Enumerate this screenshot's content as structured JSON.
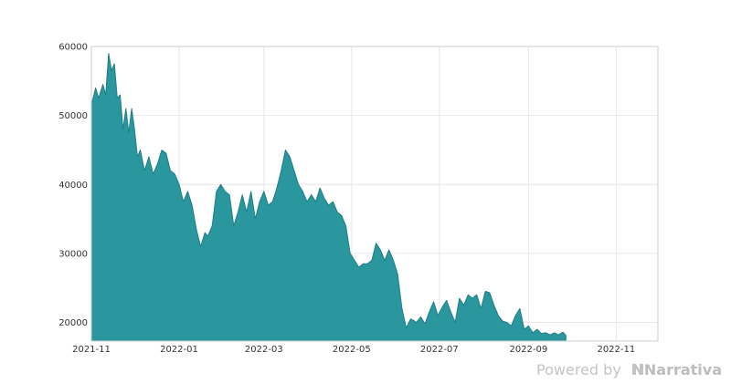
{
  "chart_data": {
    "type": "area",
    "title": "",
    "xlabel": "",
    "ylabel": "",
    "xlim": [
      "2021-11-01",
      "2022-11-30"
    ],
    "ylim": [
      17300,
      60000
    ],
    "x_ticks": [
      "2021-11",
      "2022-01",
      "2022-03",
      "2022-05",
      "2022-07",
      "2022-09",
      "2022-11"
    ],
    "y_ticks": [
      20000,
      30000,
      40000,
      50000,
      60000
    ],
    "grid": true,
    "colors": {
      "fill": "#2a969d",
      "stroke": "#1f7f86",
      "grid": "#e6e6e6",
      "frame": "#cccccc"
    },
    "series": [
      {
        "x": [
          "2021-11-01",
          "2021-11-04",
          "2021-11-06",
          "2021-11-09",
          "2021-11-11",
          "2021-11-13",
          "2021-11-15",
          "2021-11-17",
          "2021-11-19",
          "2021-11-21",
          "2021-11-23",
          "2021-11-25",
          "2021-11-27",
          "2021-11-29",
          "2021-12-01",
          "2021-12-03",
          "2021-12-05",
          "2021-12-08",
          "2021-12-11",
          "2021-12-14",
          "2021-12-17",
          "2021-12-20",
          "2021-12-23",
          "2021-12-26",
          "2021-12-29",
          "2022-01-01",
          "2022-01-04",
          "2022-01-07",
          "2022-01-10",
          "2022-01-13",
          "2022-01-16",
          "2022-01-19",
          "2022-01-21",
          "2022-01-24",
          "2022-01-27",
          "2022-01-30",
          "2022-02-02",
          "2022-02-05",
          "2022-02-08",
          "2022-02-11",
          "2022-02-14",
          "2022-02-17",
          "2022-02-20",
          "2022-02-23",
          "2022-02-26",
          "2022-03-01",
          "2022-03-04",
          "2022-03-07",
          "2022-03-10",
          "2022-03-13",
          "2022-03-16",
          "2022-03-19",
          "2022-03-22",
          "2022-03-25",
          "2022-03-28",
          "2022-03-31",
          "2022-04-03",
          "2022-04-06",
          "2022-04-09",
          "2022-04-12",
          "2022-04-15",
          "2022-04-18",
          "2022-04-21",
          "2022-04-24",
          "2022-04-27",
          "2022-04-30",
          "2022-05-03",
          "2022-05-06",
          "2022-05-09",
          "2022-05-12",
          "2022-05-15",
          "2022-05-18",
          "2022-05-21",
          "2022-05-24",
          "2022-05-27",
          "2022-05-30",
          "2022-06-02",
          "2022-06-05",
          "2022-06-08",
          "2022-06-11",
          "2022-06-13",
          "2022-06-15",
          "2022-06-18",
          "2022-06-21",
          "2022-06-24",
          "2022-06-27",
          "2022-06-30",
          "2022-07-03",
          "2022-07-06",
          "2022-07-09",
          "2022-07-12",
          "2022-07-15",
          "2022-07-18",
          "2022-07-21",
          "2022-07-24",
          "2022-07-27",
          "2022-07-30",
          "2022-08-02",
          "2022-08-05",
          "2022-08-08",
          "2022-08-11",
          "2022-08-14",
          "2022-08-17",
          "2022-08-20",
          "2022-08-23",
          "2022-08-26",
          "2022-08-29",
          "2022-09-01",
          "2022-09-04",
          "2022-09-07",
          "2022-09-10",
          "2022-09-13",
          "2022-09-16",
          "2022-09-19",
          "2022-09-22",
          "2022-09-25",
          "2022-09-27"
        ],
        "values": [
          51500,
          54000,
          52500,
          54500,
          53000,
          59000,
          56500,
          57500,
          52500,
          53000,
          48000,
          51000,
          47500,
          51000,
          48000,
          44000,
          45000,
          42000,
          44000,
          41500,
          43000,
          45000,
          44500,
          42000,
          41500,
          40000,
          37500,
          39000,
          37000,
          33500,
          31000,
          33000,
          32500,
          34000,
          39000,
          40000,
          39000,
          38500,
          34000,
          36000,
          38500,
          36000,
          39000,
          35000,
          37500,
          39000,
          37000,
          37500,
          39500,
          42000,
          45000,
          44000,
          42000,
          40000,
          39000,
          37500,
          38500,
          37500,
          39500,
          38000,
          37000,
          37500,
          36000,
          35500,
          34000,
          30000,
          29000,
          28000,
          28500,
          28500,
          29000,
          31500,
          30500,
          29000,
          30500,
          29000,
          27000,
          22000,
          19200,
          20500,
          20300,
          20000,
          20800,
          19800,
          21500,
          23000,
          21000,
          22200,
          23200,
          21500,
          20000,
          23500,
          22500,
          24000,
          23500,
          24000,
          22000,
          24500,
          24300,
          22500,
          21000,
          20200,
          20000,
          19500,
          21000,
          22000,
          19000,
          19500,
          18500,
          19000,
          18400,
          18500,
          18200,
          18500,
          18200,
          18600,
          18100
        ]
      }
    ]
  },
  "branding": {
    "powered_by": "Powered by",
    "brand_name": "Narrativa",
    "brand_icon": "narrativa-logo-icon"
  }
}
